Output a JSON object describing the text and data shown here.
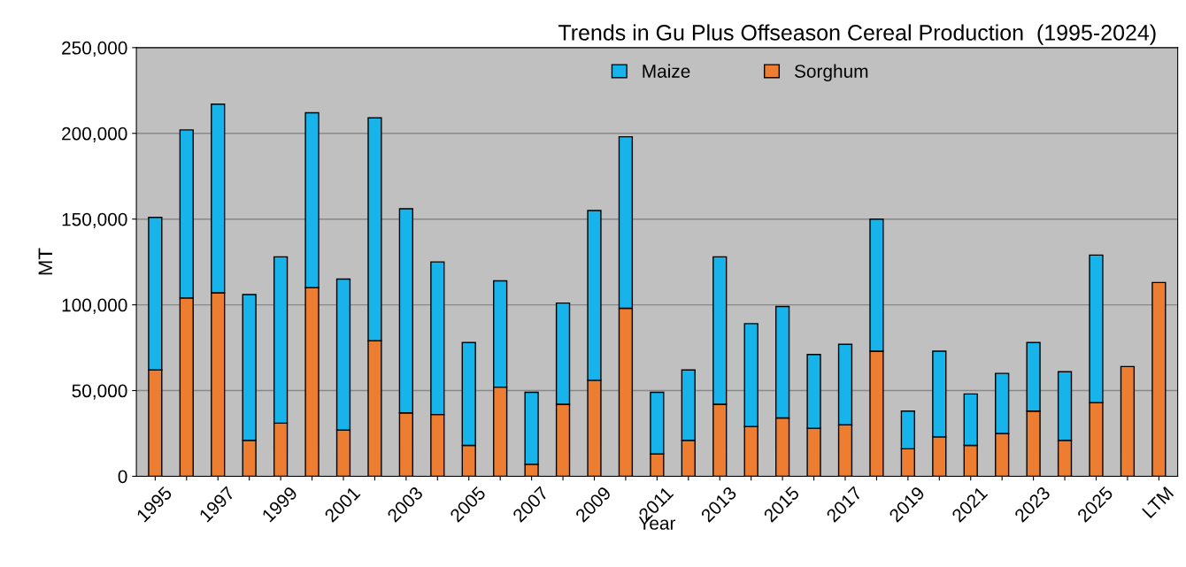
{
  "chart_data": {
    "type": "bar",
    "stacked": true,
    "title": "Trends in Gu Plus Offseason Cereal Production  (1995-2024)",
    "xlabel": "Year",
    "ylabel": "MT",
    "categories": [
      "1995",
      null,
      "1997",
      null,
      "1999",
      null,
      "2001",
      null,
      "2003",
      null,
      "2005",
      null,
      "2007",
      null,
      "2009",
      null,
      "2011",
      null,
      "2013",
      null,
      "2015",
      null,
      "2017",
      null,
      "2019",
      null,
      "2021",
      null,
      "2023",
      null,
      "2025",
      null,
      "LTM"
    ],
    "series": [
      {
        "name": "Sorghum",
        "color": "#ed7d31",
        "values": [
          62000,
          104000,
          107000,
          21000,
          31000,
          110000,
          27000,
          79000,
          37000,
          36000,
          18000,
          52000,
          7000,
          42000,
          56000,
          98000,
          13000,
          21000,
          42000,
          29000,
          34000,
          28000,
          30000,
          73000,
          16000,
          23000,
          18000,
          25000,
          38000,
          21000,
          43000,
          64000,
          113000
        ]
      },
      {
        "name": "Maize",
        "color": "#16b4ea",
        "values": [
          89000,
          98000,
          110000,
          85000,
          97000,
          102000,
          88000,
          130000,
          119000,
          89000,
          60000,
          62000,
          42000,
          59000,
          99000,
          100000,
          36000,
          41000,
          86000,
          60000,
          65000,
          43000,
          47000,
          77000,
          22000,
          50000,
          30000,
          35000,
          40000,
          40000,
          86000,
          null,
          null
        ]
      }
    ],
    "ylim": [
      0,
      250000
    ],
    "yticks": [
      {
        "value": 0,
        "label": "0"
      },
      {
        "value": 50000,
        "label": "50,000"
      },
      {
        "value": 100000,
        "label": "100,000"
      },
      {
        "value": 150000,
        "label": "150,000"
      },
      {
        "value": 200000,
        "label": "200,000"
      },
      {
        "value": 250000,
        "label": "250,000"
      }
    ],
    "grid": "y",
    "legend": "top"
  }
}
